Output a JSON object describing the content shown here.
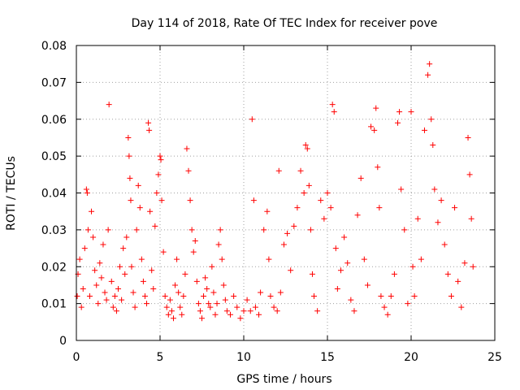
{
  "chart_data": {
    "type": "scatter",
    "title": "Day 114 of 2018, Rate Of TEC Index for receiver pove",
    "xlabel": "GPS time / hours",
    "ylabel": "ROTI / TECUs",
    "xlim": [
      0,
      25
    ],
    "ylim": [
      0,
      0.08
    ],
    "xticks": [
      0,
      5,
      10,
      15,
      20,
      25
    ],
    "yticks": [
      0,
      0.01,
      0.02,
      0.03,
      0.04,
      0.05,
      0.06,
      0.07,
      0.08
    ],
    "x_tick_labels": [
      "0",
      "5",
      "10",
      "15",
      "20",
      "25"
    ],
    "y_tick_labels": [
      "0",
      "0.01",
      "0.02",
      "0.03",
      "0.04",
      "0.05",
      "0.06",
      "0.07",
      "0.08"
    ],
    "grid": true,
    "marker": "+",
    "series": [
      {
        "name": "ROTI",
        "color": "#ff0000",
        "points": [
          [
            0.05,
            0.012
          ],
          [
            0.1,
            0.018
          ],
          [
            0.2,
            0.022
          ],
          [
            0.3,
            0.009
          ],
          [
            0.4,
            0.014
          ],
          [
            0.5,
            0.025
          ],
          [
            0.6,
            0.041
          ],
          [
            0.65,
            0.04
          ],
          [
            0.7,
            0.03
          ],
          [
            0.8,
            0.012
          ],
          [
            0.9,
            0.035
          ],
          [
            1.0,
            0.028
          ],
          [
            1.1,
            0.019
          ],
          [
            1.2,
            0.015
          ],
          [
            1.3,
            0.01
          ],
          [
            1.4,
            0.021
          ],
          [
            1.5,
            0.017
          ],
          [
            1.6,
            0.026
          ],
          [
            1.7,
            0.013
          ],
          [
            1.8,
            0.011
          ],
          [
            1.9,
            0.03
          ],
          [
            1.95,
            0.064
          ],
          [
            2.1,
            0.016
          ],
          [
            2.2,
            0.009
          ],
          [
            2.3,
            0.012
          ],
          [
            2.4,
            0.008
          ],
          [
            2.5,
            0.014
          ],
          [
            2.6,
            0.02
          ],
          [
            2.7,
            0.011
          ],
          [
            2.8,
            0.025
          ],
          [
            2.9,
            0.018
          ],
          [
            3.0,
            0.028
          ],
          [
            3.1,
            0.055
          ],
          [
            3.15,
            0.05
          ],
          [
            3.2,
            0.044
          ],
          [
            3.25,
            0.038
          ],
          [
            3.3,
            0.02
          ],
          [
            3.4,
            0.013
          ],
          [
            3.5,
            0.009
          ],
          [
            3.6,
            0.03
          ],
          [
            3.7,
            0.042
          ],
          [
            3.8,
            0.036
          ],
          [
            3.9,
            0.022
          ],
          [
            4.0,
            0.016
          ],
          [
            4.1,
            0.012
          ],
          [
            4.2,
            0.01
          ],
          [
            4.3,
            0.059
          ],
          [
            4.35,
            0.057
          ],
          [
            4.4,
            0.035
          ],
          [
            4.5,
            0.019
          ],
          [
            4.6,
            0.014
          ],
          [
            4.7,
            0.031
          ],
          [
            4.8,
            0.04
          ],
          [
            4.9,
            0.045
          ],
          [
            5.0,
            0.05
          ],
          [
            5.05,
            0.049
          ],
          [
            5.1,
            0.038
          ],
          [
            5.2,
            0.024
          ],
          [
            5.3,
            0.012
          ],
          [
            5.4,
            0.009
          ],
          [
            5.5,
            0.007
          ],
          [
            5.6,
            0.011
          ],
          [
            5.7,
            0.008
          ],
          [
            5.8,
            0.006
          ],
          [
            5.9,
            0.015
          ],
          [
            6.0,
            0.022
          ],
          [
            6.1,
            0.013
          ],
          [
            6.2,
            0.009
          ],
          [
            6.3,
            0.007
          ],
          [
            6.4,
            0.012
          ],
          [
            6.5,
            0.018
          ],
          [
            6.6,
            0.052
          ],
          [
            6.7,
            0.046
          ],
          [
            6.8,
            0.038
          ],
          [
            6.9,
            0.03
          ],
          [
            7.0,
            0.024
          ],
          [
            7.1,
            0.027
          ],
          [
            7.2,
            0.016
          ],
          [
            7.3,
            0.01
          ],
          [
            7.4,
            0.008
          ],
          [
            7.5,
            0.006
          ],
          [
            7.6,
            0.012
          ],
          [
            7.7,
            0.017
          ],
          [
            7.8,
            0.014
          ],
          [
            7.9,
            0.01
          ],
          [
            8.0,
            0.009
          ],
          [
            8.1,
            0.02
          ],
          [
            8.2,
            0.013
          ],
          [
            8.3,
            0.007
          ],
          [
            8.4,
            0.01
          ],
          [
            8.5,
            0.026
          ],
          [
            8.6,
            0.03
          ],
          [
            8.7,
            0.022
          ],
          [
            8.8,
            0.015
          ],
          [
            8.9,
            0.011
          ],
          [
            9.0,
            0.008
          ],
          [
            9.2,
            0.007
          ],
          [
            9.4,
            0.012
          ],
          [
            9.6,
            0.009
          ],
          [
            9.8,
            0.006
          ],
          [
            10.0,
            0.008
          ],
          [
            10.2,
            0.011
          ],
          [
            10.4,
            0.008
          ],
          [
            10.5,
            0.06
          ],
          [
            10.6,
            0.038
          ],
          [
            10.7,
            0.009
          ],
          [
            10.9,
            0.007
          ],
          [
            11.0,
            0.013
          ],
          [
            11.2,
            0.03
          ],
          [
            11.4,
            0.035
          ],
          [
            11.5,
            0.022
          ],
          [
            11.6,
            0.012
          ],
          [
            11.8,
            0.009
          ],
          [
            12.0,
            0.008
          ],
          [
            12.1,
            0.046
          ],
          [
            12.2,
            0.013
          ],
          [
            12.4,
            0.026
          ],
          [
            12.6,
            0.029
          ],
          [
            12.8,
            0.019
          ],
          [
            13.0,
            0.031
          ],
          [
            13.2,
            0.036
          ],
          [
            13.4,
            0.046
          ],
          [
            13.6,
            0.04
          ],
          [
            13.7,
            0.053
          ],
          [
            13.8,
            0.052
          ],
          [
            13.9,
            0.042
          ],
          [
            14.0,
            0.03
          ],
          [
            14.1,
            0.018
          ],
          [
            14.2,
            0.012
          ],
          [
            14.4,
            0.008
          ],
          [
            14.6,
            0.038
          ],
          [
            14.8,
            0.033
          ],
          [
            15.0,
            0.04
          ],
          [
            15.2,
            0.036
          ],
          [
            15.3,
            0.064
          ],
          [
            15.4,
            0.062
          ],
          [
            15.5,
            0.025
          ],
          [
            15.6,
            0.014
          ],
          [
            15.8,
            0.019
          ],
          [
            16.0,
            0.028
          ],
          [
            16.2,
            0.021
          ],
          [
            16.4,
            0.011
          ],
          [
            16.6,
            0.008
          ],
          [
            16.8,
            0.034
          ],
          [
            17.0,
            0.044
          ],
          [
            17.2,
            0.022
          ],
          [
            17.4,
            0.015
          ],
          [
            17.6,
            0.058
          ],
          [
            17.8,
            0.057
          ],
          [
            17.9,
            0.063
          ],
          [
            18.0,
            0.047
          ],
          [
            18.1,
            0.036
          ],
          [
            18.2,
            0.012
          ],
          [
            18.4,
            0.009
          ],
          [
            18.6,
            0.007
          ],
          [
            18.8,
            0.012
          ],
          [
            19.0,
            0.018
          ],
          [
            19.2,
            0.059
          ],
          [
            19.3,
            0.062
          ],
          [
            19.4,
            0.041
          ],
          [
            19.6,
            0.03
          ],
          [
            19.8,
            0.01
          ],
          [
            20.0,
            0.062
          ],
          [
            20.1,
            0.02
          ],
          [
            20.2,
            0.012
          ],
          [
            20.4,
            0.033
          ],
          [
            20.6,
            0.022
          ],
          [
            20.8,
            0.057
          ],
          [
            21.0,
            0.072
          ],
          [
            21.1,
            0.075
          ],
          [
            21.2,
            0.06
          ],
          [
            21.3,
            0.053
          ],
          [
            21.4,
            0.041
          ],
          [
            21.6,
            0.032
          ],
          [
            21.8,
            0.038
          ],
          [
            22.0,
            0.026
          ],
          [
            22.2,
            0.018
          ],
          [
            22.4,
            0.012
          ],
          [
            22.6,
            0.036
          ],
          [
            22.8,
            0.016
          ],
          [
            23.0,
            0.009
          ],
          [
            23.2,
            0.021
          ],
          [
            23.4,
            0.055
          ],
          [
            23.5,
            0.045
          ],
          [
            23.6,
            0.033
          ],
          [
            23.7,
            0.02
          ]
        ]
      }
    ]
  }
}
